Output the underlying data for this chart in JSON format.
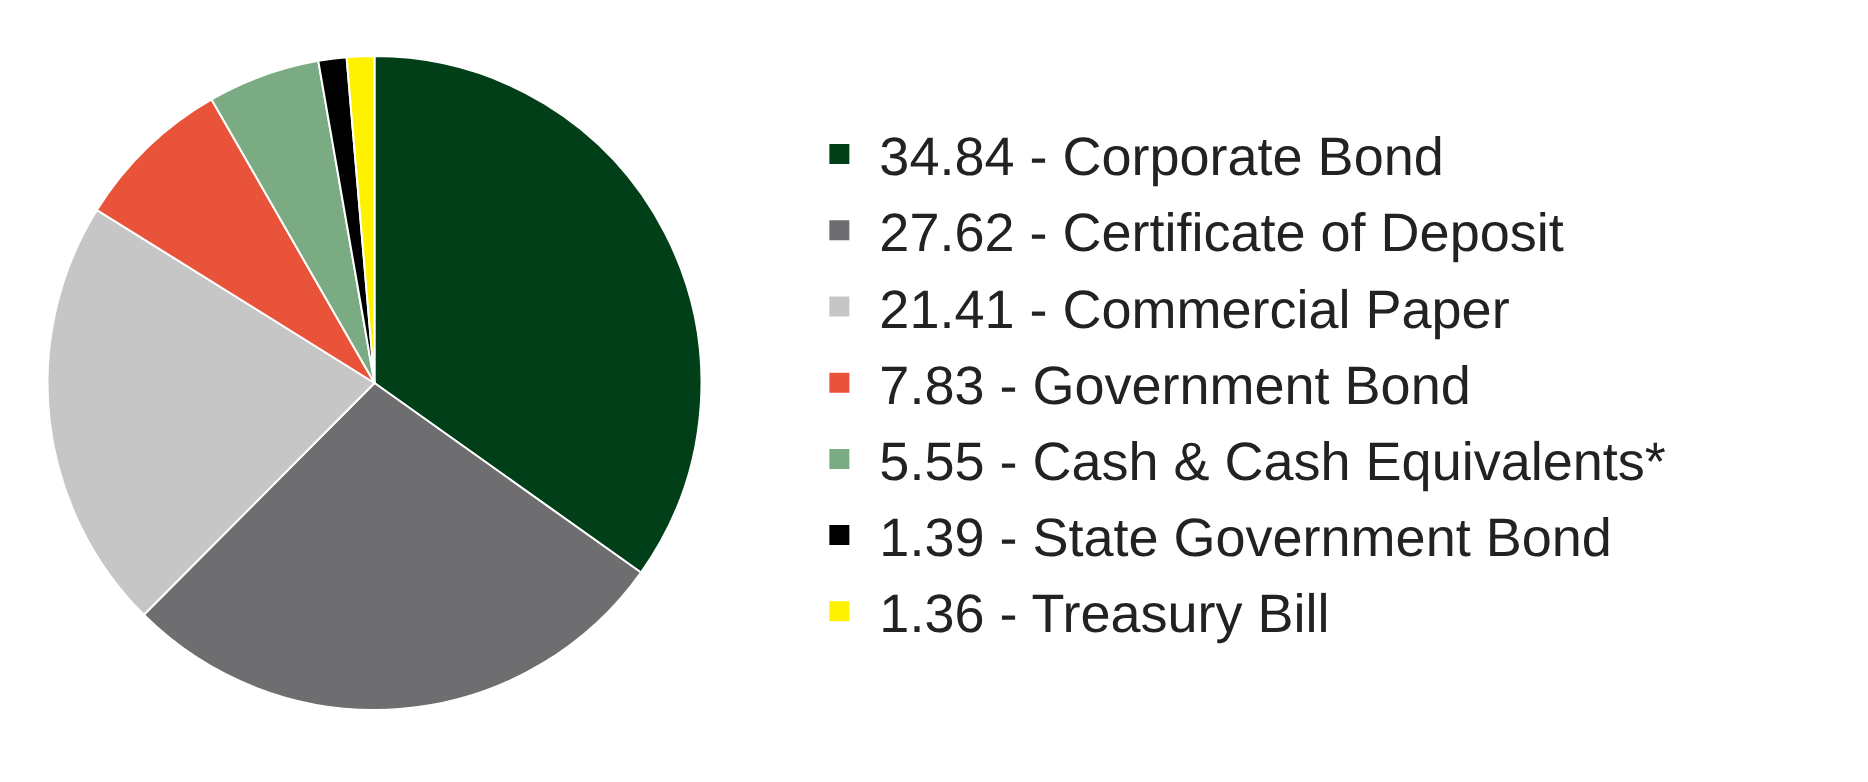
{
  "chart_data": {
    "type": "pie",
    "categories": [
      "34.84 - Corporate Bond",
      "27.62 - Certificate of Deposit",
      "21.41 - Commercial Paper",
      "7.83 - Government Bond",
      "5.55 - Cash & Cash Equivalents*",
      "1.39 - State Government Bond",
      "1.36 - Treasury Bill"
    ],
    "values": [
      34.84,
      27.62,
      21.41,
      7.83,
      5.55,
      1.39,
      1.36
    ],
    "colors": [
      "#003f17",
      "#6e6d6f",
      "#c6c6c6",
      "#e8533a",
      "#7aab82",
      "#000000",
      "#fff200"
    ],
    "legend": "right"
  }
}
